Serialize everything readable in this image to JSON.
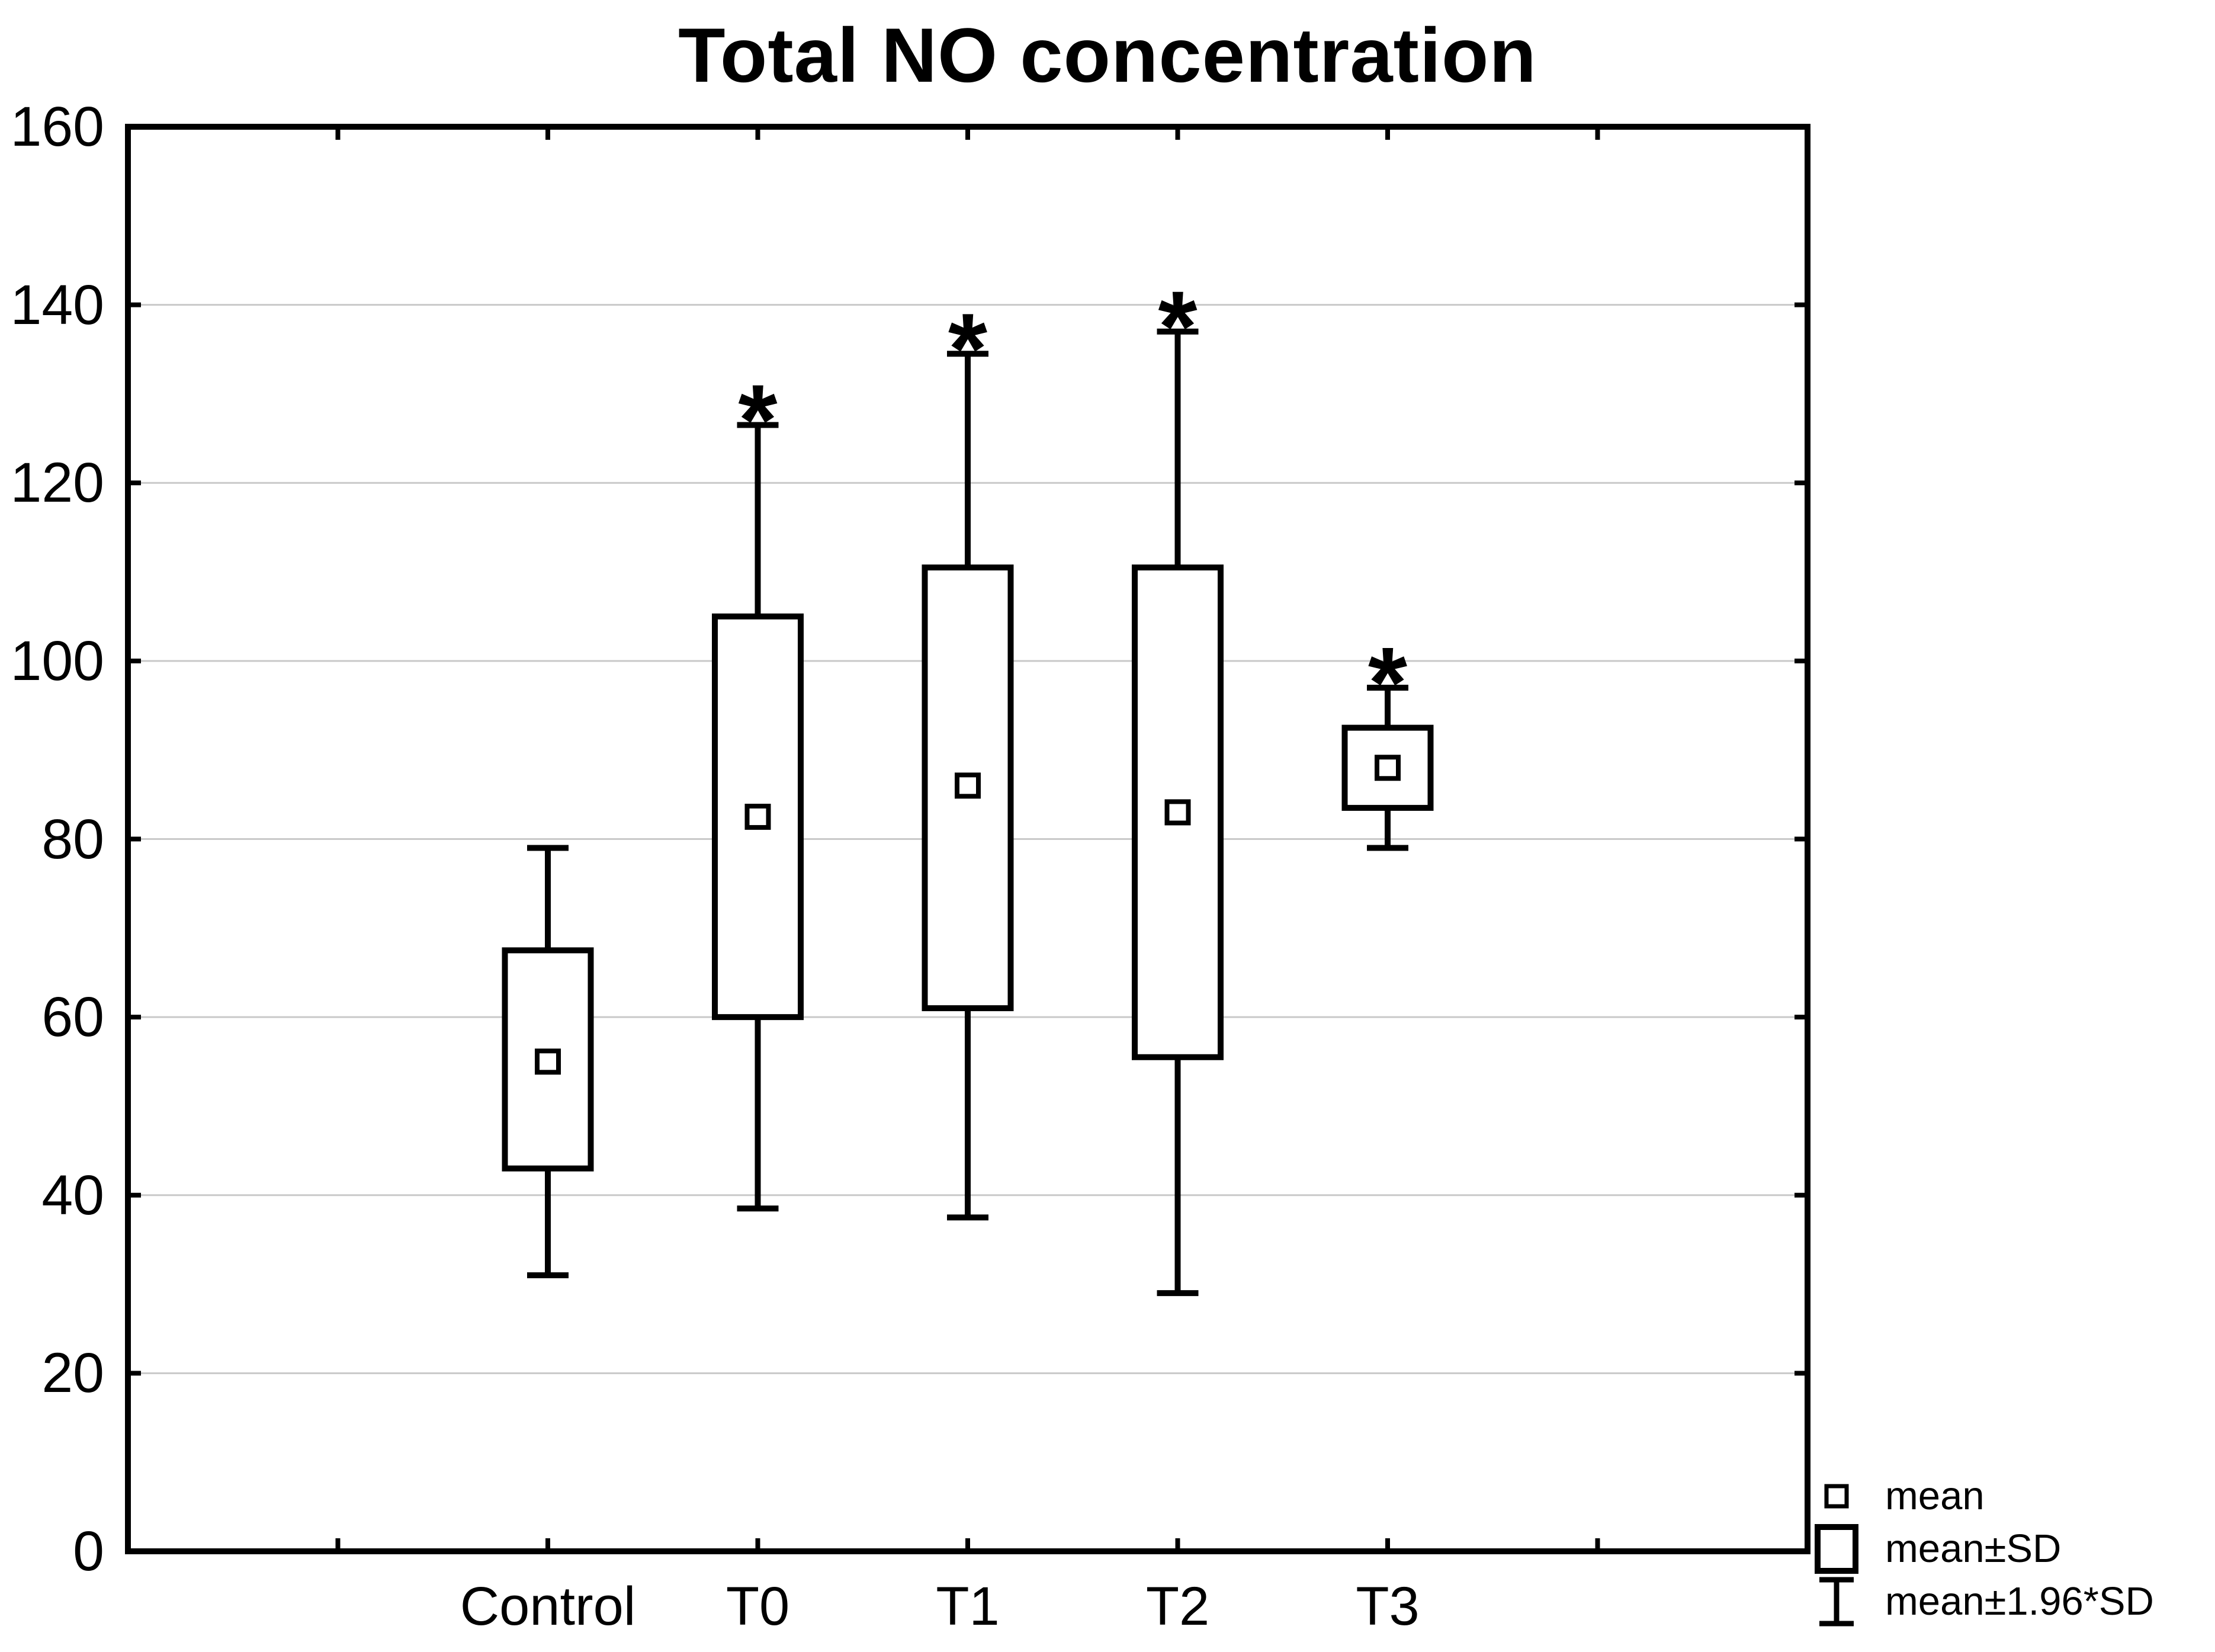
{
  "title": "Total NO concentration",
  "colors": {
    "stroke": "#000000",
    "grid": "#c9c9c9",
    "background": "#ffffff",
    "text": "#000000"
  },
  "chart_data": {
    "type": "box",
    "title": "Total NO concentration",
    "categories": [
      "Control",
      "T0",
      "T1",
      "T2",
      "T3"
    ],
    "y_axis": {
      "min": 0,
      "max": 160,
      "step": 20,
      "tick_labels": [
        "0",
        "20",
        "40",
        "60",
        "80",
        "100",
        "120",
        "140",
        "160"
      ]
    },
    "grid": "horizontal",
    "significance_marker": "*",
    "boxes": [
      {
        "label": "Control",
        "mean": 55,
        "mean_minus_sd": 43,
        "mean_plus_sd": 67.5,
        "whisker_low": 31,
        "whisker_high": 79,
        "asterisk": false
      },
      {
        "label": "T0",
        "mean": 82.5,
        "mean_minus_sd": 60,
        "mean_plus_sd": 105,
        "whisker_low": 38.5,
        "whisker_high": 126.5,
        "asterisk": true
      },
      {
        "label": "T1",
        "mean": 86,
        "mean_minus_sd": 61,
        "mean_plus_sd": 110.5,
        "whisker_low": 37.5,
        "whisker_high": 134.5,
        "asterisk": true
      },
      {
        "label": "T2",
        "mean": 83,
        "mean_minus_sd": 55.5,
        "mean_plus_sd": 110.5,
        "whisker_low": 29,
        "whisker_high": 137,
        "asterisk": true
      },
      {
        "label": "T3",
        "mean": 88,
        "mean_minus_sd": 83.5,
        "mean_plus_sd": 92.5,
        "whisker_low": 79,
        "whisker_high": 97,
        "asterisk": true
      }
    ],
    "legend": [
      {
        "symbol": "mean-square",
        "label": "mean"
      },
      {
        "symbol": "sd-box",
        "label": "mean±SD"
      },
      {
        "symbol": "whisker-i-beam",
        "label": "mean±1.96*SD"
      }
    ],
    "legend_position": "bottom-right"
  }
}
